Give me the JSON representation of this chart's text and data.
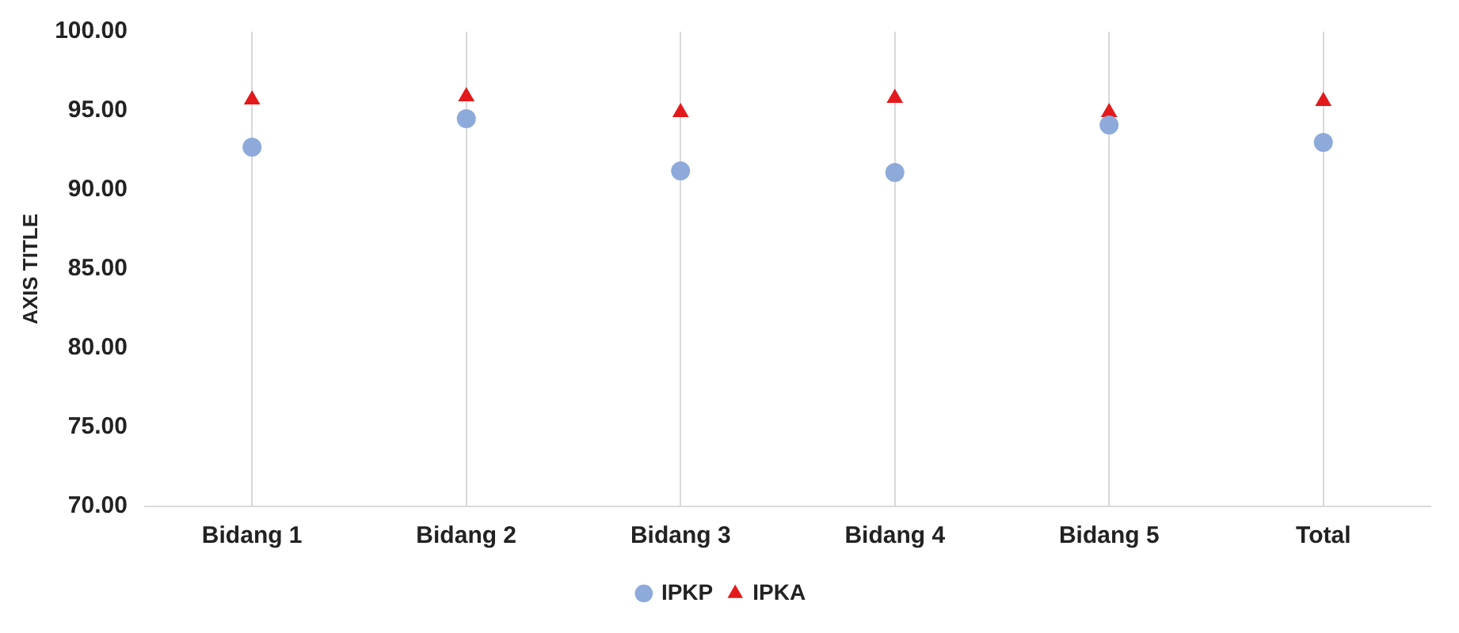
{
  "chart_data": {
    "type": "scatter",
    "ylabel": "AXIS TITLE",
    "categories": [
      "Bidang 1",
      "Bidang 2",
      "Bidang 3",
      "Bidang 4",
      "Bidang 5",
      "Total"
    ],
    "series": [
      {
        "name": "IPKP",
        "color": "#8eaadb",
        "marker": "circle",
        "values": [
          92.7,
          94.5,
          91.2,
          91.1,
          94.1,
          93.0
        ]
      },
      {
        "name": "IPKA",
        "color": "#e31a1c",
        "marker": "triangle",
        "values": [
          95.7,
          95.9,
          94.9,
          95.8,
          94.9,
          95.6
        ]
      }
    ],
    "ylim": [
      70,
      100
    ],
    "yticks": [
      {
        "value": 70,
        "label": "70.00"
      },
      {
        "value": 75,
        "label": "75.00"
      },
      {
        "value": 80,
        "label": "80.00"
      },
      {
        "value": 85,
        "label": "85.00"
      },
      {
        "value": 90,
        "label": "90.00"
      },
      {
        "value": 95,
        "label": "95.00"
      },
      {
        "value": 100,
        "label": "100.00"
      }
    ],
    "grid": "x",
    "legend": "bottom"
  }
}
